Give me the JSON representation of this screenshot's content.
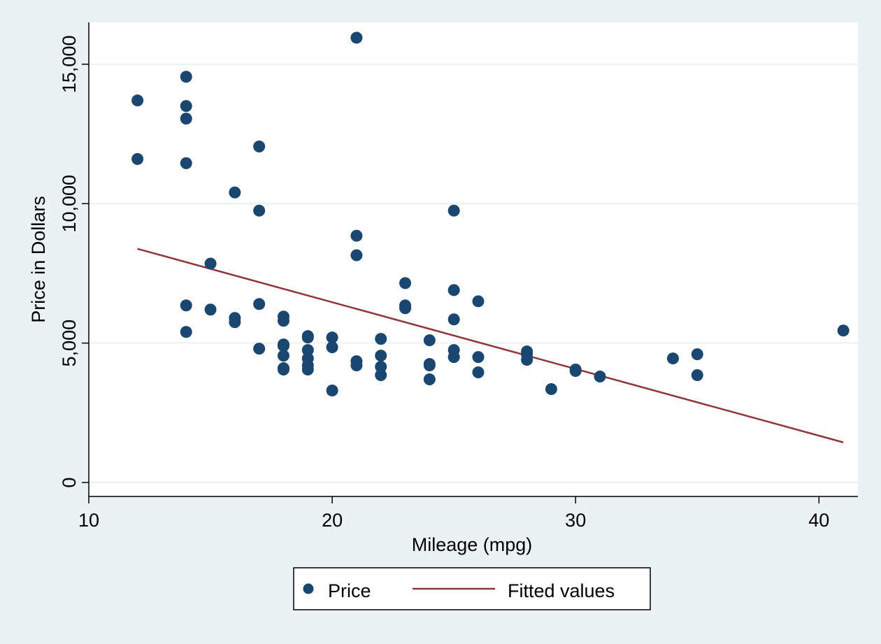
{
  "chart_data": {
    "type": "scatter",
    "title": "",
    "xlabel": "Mileage (mpg)",
    "ylabel": "Price in Dollars",
    "xlim": [
      10,
      41.6
    ],
    "ylim": [
      -500,
      16500
    ],
    "xticks": [
      10,
      20,
      30,
      40
    ],
    "xtick_labels": [
      "10",
      "20",
      "30",
      "40"
    ],
    "yticks": [
      0,
      5000,
      10000,
      15000
    ],
    "ytick_labels": [
      "0",
      "5,000",
      "10,000",
      "15,000"
    ],
    "grid": "horizontal",
    "legend_position": "bottom",
    "series": [
      {
        "name": "Price",
        "kind": "scatter",
        "color": "#1a476f",
        "points": [
          [
            12,
            13700
          ],
          [
            12,
            11600
          ],
          [
            14,
            14550
          ],
          [
            14,
            13500
          ],
          [
            14,
            13050
          ],
          [
            14,
            11450
          ],
          [
            14,
            6350
          ],
          [
            14,
            5400
          ],
          [
            15,
            7850
          ],
          [
            15,
            6200
          ],
          [
            16,
            10400
          ],
          [
            16,
            5900
          ],
          [
            16,
            5750
          ],
          [
            17,
            12050
          ],
          [
            17,
            9750
          ],
          [
            17,
            6400
          ],
          [
            17,
            4800
          ],
          [
            18,
            5950
          ],
          [
            18,
            5800
          ],
          [
            18,
            4950
          ],
          [
            18,
            4900
          ],
          [
            18,
            4550
          ],
          [
            18,
            4100
          ],
          [
            18,
            4050
          ],
          [
            19,
            5250
          ],
          [
            19,
            5200
          ],
          [
            19,
            4750
          ],
          [
            19,
            4450
          ],
          [
            19,
            4200
          ],
          [
            19,
            4050
          ],
          [
            20,
            5200
          ],
          [
            20,
            4850
          ],
          [
            20,
            3300
          ],
          [
            21,
            15950
          ],
          [
            21,
            8850
          ],
          [
            21,
            8150
          ],
          [
            21,
            4350
          ],
          [
            21,
            4200
          ],
          [
            22,
            5150
          ],
          [
            22,
            4550
          ],
          [
            22,
            4150
          ],
          [
            22,
            3850
          ],
          [
            23,
            7150
          ],
          [
            23,
            6350
          ],
          [
            23,
            6250
          ],
          [
            24,
            5100
          ],
          [
            24,
            4250
          ],
          [
            24,
            4200
          ],
          [
            24,
            3700
          ],
          [
            25,
            9750
          ],
          [
            25,
            6900
          ],
          [
            25,
            5850
          ],
          [
            25,
            4750
          ],
          [
            25,
            4500
          ],
          [
            26,
            6500
          ],
          [
            26,
            4500
          ],
          [
            26,
            3950
          ],
          [
            28,
            4700
          ],
          [
            28,
            4600
          ],
          [
            28,
            4400
          ],
          [
            29,
            3350
          ],
          [
            30,
            4050
          ],
          [
            30,
            4000
          ],
          [
            31,
            3800
          ],
          [
            34,
            4450
          ],
          [
            35,
            4600
          ],
          [
            35,
            3850
          ],
          [
            41,
            5450
          ]
        ]
      },
      {
        "name": "Fitted values",
        "kind": "line",
        "color": "#90353b",
        "points": [
          [
            12,
            8380
          ],
          [
            41,
            1440
          ]
        ]
      }
    ]
  }
}
